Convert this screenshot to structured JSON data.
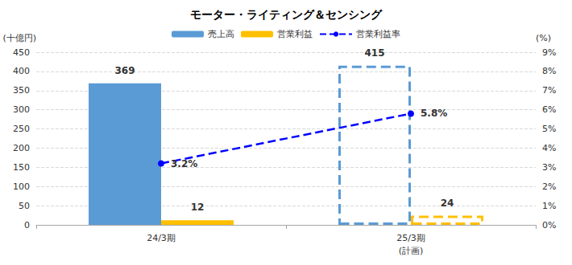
{
  "chart_data": {
    "type": "bar",
    "title": "モーター・ライティング＆センシング",
    "categories": [
      "24/3期",
      "25/3期\n(計画)"
    ],
    "ylabel": "(十億円)",
    "y2label": "(%)",
    "series": [
      {
        "name": "売上高",
        "type": "bar",
        "color": "#5b9bd5",
        "values": [
          369,
          415
        ]
      },
      {
        "name": "営業利益",
        "type": "bar",
        "color": "#ffc000",
        "values": [
          12,
          24
        ]
      },
      {
        "name": "営業利益率",
        "type": "line",
        "axis": "y2",
        "color": "#0000ff",
        "line_style": "dashed",
        "marker": "circle",
        "values": [
          3.2,
          5.8
        ],
        "value_labels": [
          "3.2%",
          "5.8%"
        ]
      }
    ],
    "ylim": [
      0,
      450
    ],
    "yticks": [
      0,
      50,
      100,
      150,
      200,
      250,
      300,
      350,
      400,
      450
    ],
    "y2lim": [
      0,
      9
    ],
    "y2ticks": [
      {
        "value": 0,
        "label": "0%"
      },
      {
        "value": 1,
        "label": "1%"
      },
      {
        "value": 2,
        "label": "2%"
      },
      {
        "value": 3,
        "label": "3%"
      },
      {
        "value": 4,
        "label": "4%"
      },
      {
        "value": 5,
        "label": "5%"
      },
      {
        "value": 6,
        "label": "6%"
      },
      {
        "value": 7,
        "label": "7%"
      },
      {
        "value": 8,
        "label": "8%"
      },
      {
        "value": 9,
        "label": "9%"
      }
    ],
    "grid": true,
    "legend": "top",
    "data_labels": true
  }
}
